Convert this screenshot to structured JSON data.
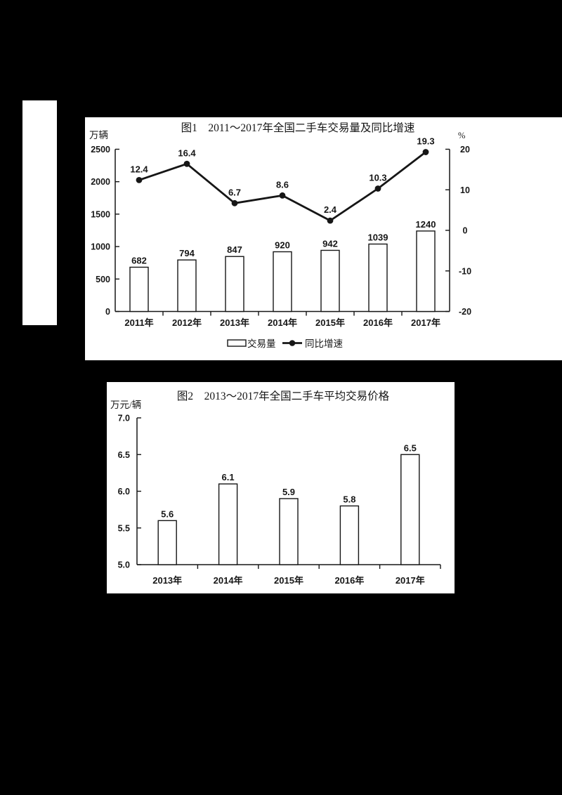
{
  "page": {
    "background_color": "#000000",
    "panel_color": "#ffffff",
    "ink_color": "#161616"
  },
  "chart_data": [
    {
      "type": "combo",
      "title": "图1　2011～2017年全国二手车交易量及同比增速",
      "categories": [
        "2011年",
        "2012年",
        "2013年",
        "2014年",
        "2015年",
        "2016年",
        "2017年"
      ],
      "series": [
        {
          "name": "交易量",
          "type": "bar",
          "axis": "left",
          "values": [
            682,
            794,
            847,
            920,
            942,
            1039,
            1240
          ],
          "data_labels": [
            "682",
            "794",
            "847",
            "920",
            "942",
            "1039",
            "1240"
          ]
        },
        {
          "name": "同比增速",
          "type": "line",
          "axis": "right",
          "values": [
            12.4,
            16.4,
            6.7,
            8.6,
            2.4,
            10.3,
            19.3
          ],
          "data_labels": [
            "12.4",
            "16.4",
            "6.7",
            "8.6",
            "2.4",
            "10.3",
            "19.3"
          ]
        }
      ],
      "left_axis": {
        "unit": "万辆",
        "min": 0,
        "max": 2500,
        "tick_labels": [
          "2500",
          "2000",
          "1500",
          "1000",
          "500",
          "0"
        ]
      },
      "right_axis": {
        "unit": "%",
        "min": -20,
        "max": 20,
        "tick_labels": [
          "20",
          "10",
          "0",
          "-10",
          "-20"
        ]
      },
      "legend": {
        "position": "bottom",
        "entries": [
          "交易量",
          "同比增速"
        ]
      },
      "grid": false
    },
    {
      "type": "bar",
      "title": "图2　2013～2017年全国二手车平均交易价格",
      "categories": [
        "2013年",
        "2014年",
        "2015年",
        "2016年",
        "2017年"
      ],
      "values": [
        5.6,
        6.1,
        5.9,
        5.8,
        6.5
      ],
      "data_labels": [
        "5.6",
        "6.1",
        "5.9",
        "5.8",
        "6.5"
      ],
      "xlabel": "",
      "ylabel": "万元/辆",
      "ylim": [
        5.0,
        7.0
      ],
      "y_tick_labels": [
        "7.0",
        "6.5",
        "6.0",
        "5.5",
        "5.0"
      ],
      "grid": false
    }
  ]
}
